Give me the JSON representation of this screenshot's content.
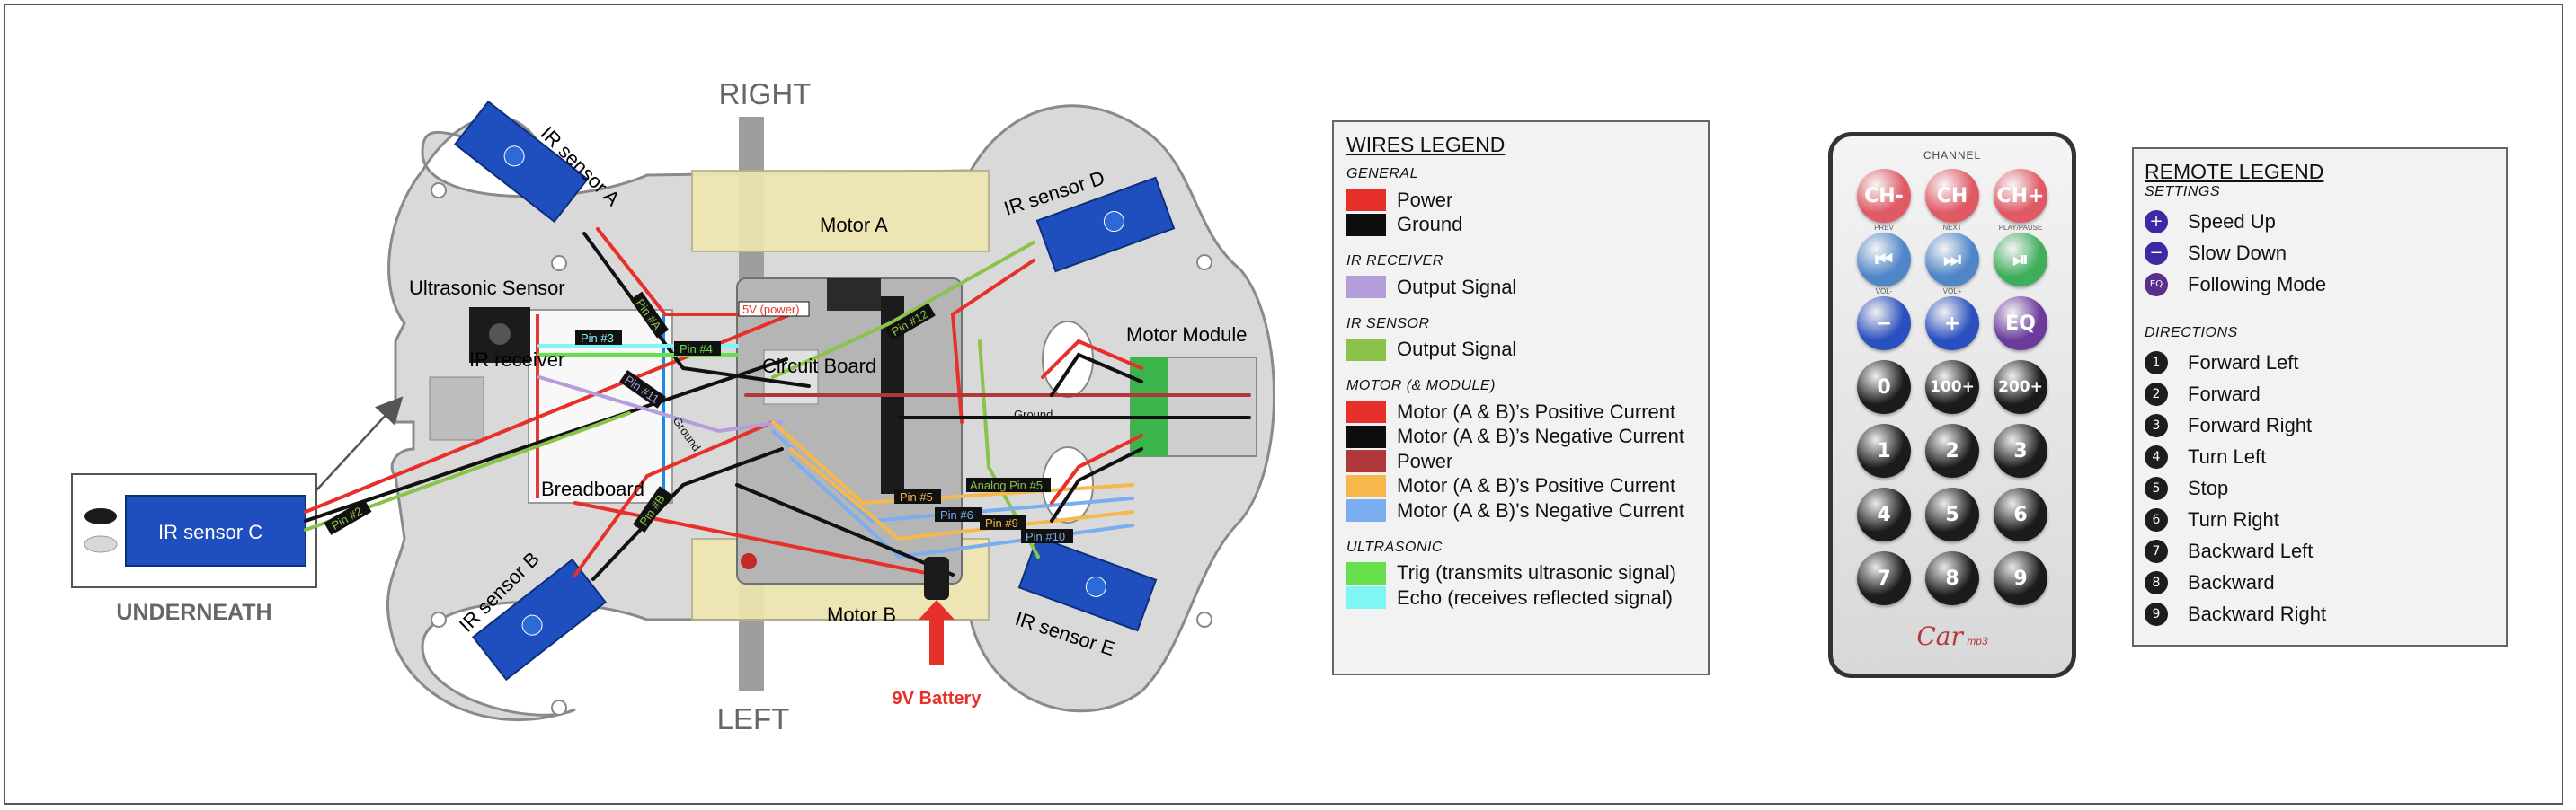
{
  "diagram": {
    "side_labels": {
      "right": "RIGHT",
      "left": "LEFT",
      "underneath": "UNDERNEATH"
    },
    "components": {
      "ir_sensor_a": "IR sensor A",
      "ir_sensor_b": "IR sensor B",
      "ir_sensor_c": "IR sensor C",
      "ir_sensor_d": "IR sensor D",
      "ir_sensor_e": "IR sensor E",
      "ultrasonic": "Ultrasonic Sensor",
      "ir_receiver": "IR receiver",
      "breadboard": "Breadboard",
      "circuit_board": "Circuit Board",
      "motor_a": "Motor A",
      "motor_b": "Motor B",
      "motor_module": "Motor Module",
      "battery": "9V Battery"
    },
    "pin_labels": {
      "pin2": "Pin #2",
      "pin3": "Pin #3",
      "pin4": "Pin #4",
      "pin5": "Pin #5",
      "pin6": "Pin #6",
      "pin9": "Pin #9",
      "pin10": "Pin #10",
      "pin11": "Pin #11",
      "pin12": "Pin #12",
      "pin_a": "Pin #A",
      "pin_b": "Pin #B",
      "analog5": "Analog Pin #5",
      "power5v": "5V (power)",
      "ground": "Ground"
    }
  },
  "wires_legend": {
    "title": "WIRES LEGEND",
    "sections": [
      {
        "heading": "GENERAL",
        "items": [
          {
            "color": "#e8302a",
            "label": "Power"
          },
          {
            "color": "#0d0d0d",
            "label": "Ground"
          }
        ]
      },
      {
        "heading": "IR RECEIVER",
        "items": [
          {
            "color": "#b39ddb",
            "label": "Output Signal"
          }
        ]
      },
      {
        "heading": "IR SENSOR",
        "items": [
          {
            "color": "#8bc34a",
            "label": "Output Signal"
          }
        ]
      },
      {
        "heading": "MOTOR (& MODULE)",
        "items": [
          {
            "color": "#e8302a",
            "label": "Motor (A & B)’s Positive Current"
          },
          {
            "color": "#0d0d0d",
            "label": "Motor (A & B)’s Negative Current"
          },
          {
            "color": "#b0373a",
            "label": "Power"
          },
          {
            "color": "#f7b84b",
            "label": "Motor (A & B)’s Positive Current"
          },
          {
            "color": "#7aaef0",
            "label": "Motor (A & B)’s Negative Current"
          }
        ]
      },
      {
        "heading": "ULTRASONIC",
        "items": [
          {
            "color": "#66e04a",
            "label": "Trig (transmits ultrasonic signal)"
          },
          {
            "color": "#80f5f5",
            "label": "Echo (receives reflected signal)"
          }
        ]
      }
    ]
  },
  "remote": {
    "channel_label": "CHANNEL",
    "brand": "Car",
    "brand_sub": "mp3",
    "rows": [
      [
        {
          "text": "CH-",
          "sub": "PREV",
          "color": "#e05a66"
        },
        {
          "text": "CH",
          "sub": "NEXT",
          "color": "#e05a66"
        },
        {
          "text": "CH+",
          "sub": "PLAY/PAUSE",
          "color": "#e05a66"
        }
      ],
      [
        {
          "text": "⏮",
          "sub": "VOL-",
          "color": "#4f86c8"
        },
        {
          "text": "⏭",
          "sub": "VOL+",
          "color": "#4f86c8"
        },
        {
          "text": "⏯",
          "sub": "",
          "color": "#3fae5b"
        }
      ],
      [
        {
          "text": "−",
          "sub": "",
          "color": "#2a4fbf"
        },
        {
          "text": "+",
          "sub": "",
          "color": "#2a4fbf"
        },
        {
          "text": "EQ",
          "sub": "",
          "color": "#6a3a9c"
        }
      ],
      [
        {
          "text": "0",
          "sub": "",
          "color": "#1b1b1b"
        },
        {
          "text": "100+",
          "sub": "",
          "color": "#1b1b1b"
        },
        {
          "text": "200+",
          "sub": "",
          "color": "#1b1b1b"
        }
      ],
      [
        {
          "text": "1",
          "sub": "",
          "color": "#1b1b1b"
        },
        {
          "text": "2",
          "sub": "",
          "color": "#1b1b1b"
        },
        {
          "text": "3",
          "sub": "",
          "color": "#1b1b1b"
        }
      ],
      [
        {
          "text": "4",
          "sub": "",
          "color": "#1b1b1b"
        },
        {
          "text": "5",
          "sub": "",
          "color": "#1b1b1b"
        },
        {
          "text": "6",
          "sub": "",
          "color": "#1b1b1b"
        }
      ],
      [
        {
          "text": "7",
          "sub": "",
          "color": "#1b1b1b"
        },
        {
          "text": "8",
          "sub": "",
          "color": "#1b1b1b"
        },
        {
          "text": "9",
          "sub": "",
          "color": "#1b1b1b"
        }
      ]
    ]
  },
  "remote_legend": {
    "title": "REMOTE  LEGEND",
    "settings_heading": "SETTINGS",
    "settings": [
      {
        "icon": "+",
        "label": "Speed Up"
      },
      {
        "icon": "−",
        "label": "Slow Down"
      },
      {
        "icon": "EQ",
        "label": "Following Mode"
      }
    ],
    "directions_heading": "DIRECTIONS",
    "directions": [
      {
        "num": "1",
        "label": "Forward Left"
      },
      {
        "num": "2",
        "label": "Forward"
      },
      {
        "num": "3",
        "label": "Forward Right"
      },
      {
        "num": "4",
        "label": "Turn Left"
      },
      {
        "num": "5",
        "label": "Stop"
      },
      {
        "num": "6",
        "label": "Turn Right"
      },
      {
        "num": "7",
        "label": "Backward Left"
      },
      {
        "num": "8",
        "label": "Backward"
      },
      {
        "num": "9",
        "label": "Backward Right"
      }
    ]
  }
}
